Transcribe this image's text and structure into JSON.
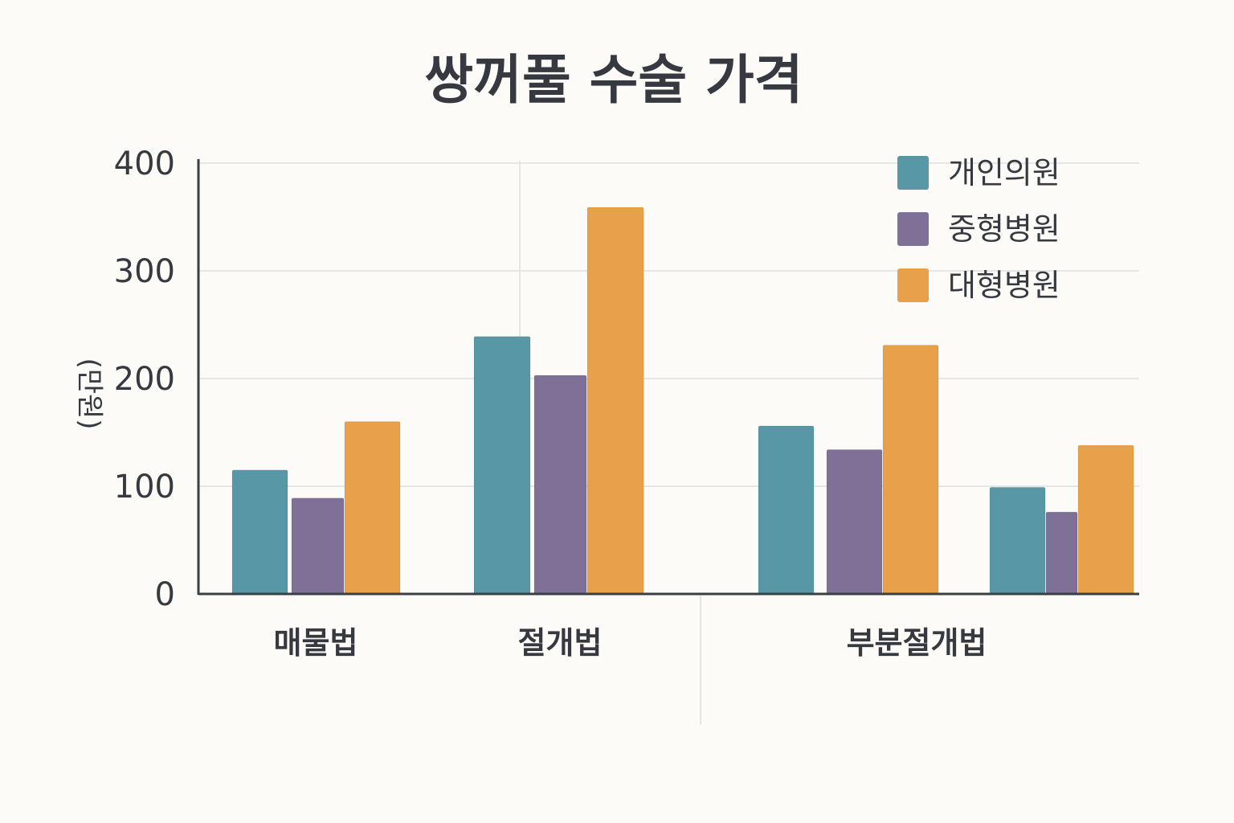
{
  "chart_data": {
    "type": "bar",
    "title": "쌍꺼풀 수술 가격",
    "xlabel": "",
    "ylabel": "(만원)",
    "ylim": [
      0,
      400
    ],
    "yticks": [
      0,
      100,
      200,
      300,
      400
    ],
    "grid": true,
    "legend_position": "top-right",
    "groups": [
      {
        "label": "매물법",
        "values": [
          115,
          89,
          160
        ]
      },
      {
        "label": "절개법",
        "values": [
          239,
          203,
          359
        ]
      },
      {
        "label": "부분절개법",
        "values": [
          156,
          134,
          231
        ]
      },
      {
        "label": "",
        "values": [
          99,
          76,
          138
        ]
      }
    ],
    "series": [
      {
        "name": "개인의원",
        "color": "#5898a6"
      },
      {
        "name": "중형병원",
        "color": "#7e7096"
      },
      {
        "name": "대형병원",
        "color": "#e8a04a"
      }
    ]
  }
}
